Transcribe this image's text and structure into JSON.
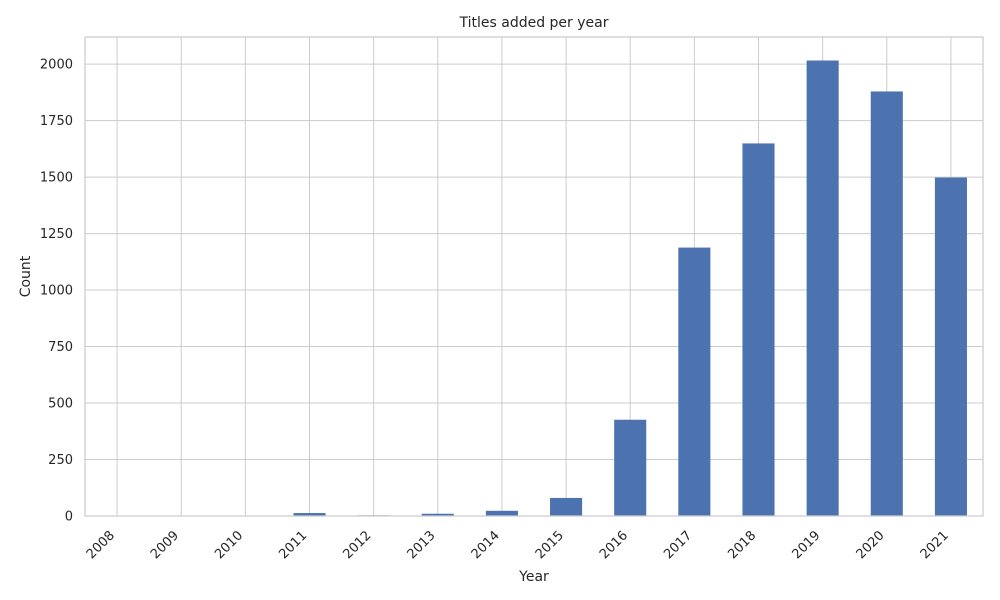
{
  "chart_data": {
    "type": "bar",
    "title": "Titles added per year",
    "xlabel": "Year",
    "ylabel": "Count",
    "categories": [
      "2008",
      "2009",
      "2010",
      "2011",
      "2012",
      "2013",
      "2014",
      "2015",
      "2016",
      "2017",
      "2018",
      "2019",
      "2020",
      "2021"
    ],
    "values": [
      2,
      2,
      1,
      13,
      3,
      10,
      23,
      80,
      426,
      1188,
      1649,
      2016,
      1879,
      1498
    ],
    "ylim": [
      0,
      2120
    ],
    "yticks": [
      0,
      250,
      500,
      750,
      1000,
      1250,
      1500,
      1750,
      2000
    ],
    "grid": true,
    "bar_color": "#4c72b0",
    "grid_color": "#cccccc"
  }
}
